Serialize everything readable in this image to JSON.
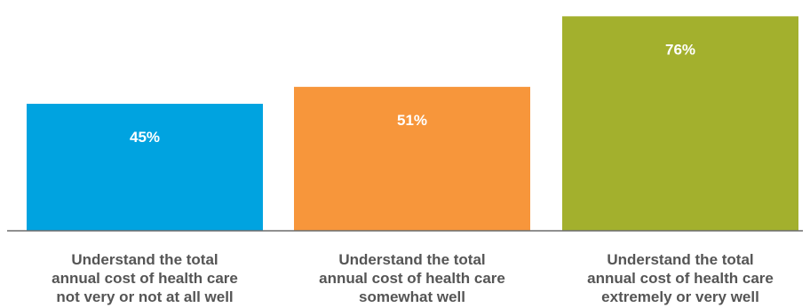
{
  "chart_data": {
    "type": "bar",
    "categories": [
      [
        "Understand the total",
        "annual cost of health care",
        "not very or not at all well"
      ],
      [
        "Understand the total",
        "annual cost of health care",
        "somewhat well"
      ],
      [
        "Understand the total",
        "annual cost of health care",
        "extremely or very well"
      ]
    ],
    "values": [
      45,
      51,
      76
    ],
    "data_labels": [
      "45%",
      "51%",
      "76%"
    ],
    "colors": [
      "#00A3E0",
      "#F7963B",
      "#A3B02D"
    ],
    "title": "",
    "xlabel": "",
    "ylabel": "",
    "ylim": [
      0,
      78
    ],
    "grid": false,
    "legend": "none"
  }
}
